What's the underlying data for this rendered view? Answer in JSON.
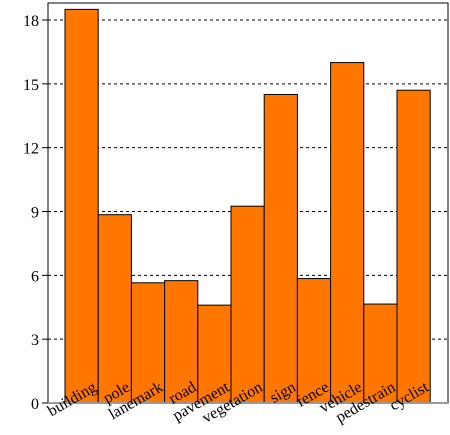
{
  "chart_data": {
    "type": "bar",
    "categories": [
      "building",
      "pole",
      "lanemark",
      "road",
      "pavement",
      "vegetation",
      "sign",
      "fence",
      "vehicle",
      "pedestrain",
      "cyclist"
    ],
    "values": [
      18.5,
      8.85,
      5.65,
      5.75,
      4.6,
      9.25,
      14.5,
      5.85,
      16.0,
      4.65,
      14.7
    ],
    "yticks": [
      0,
      3,
      6,
      9,
      12,
      15,
      18
    ],
    "ylim": [
      0,
      18.8
    ],
    "bar_color": "#ff7700",
    "bar_edge_color": "#000000",
    "grid": "dashed-horizontal"
  }
}
